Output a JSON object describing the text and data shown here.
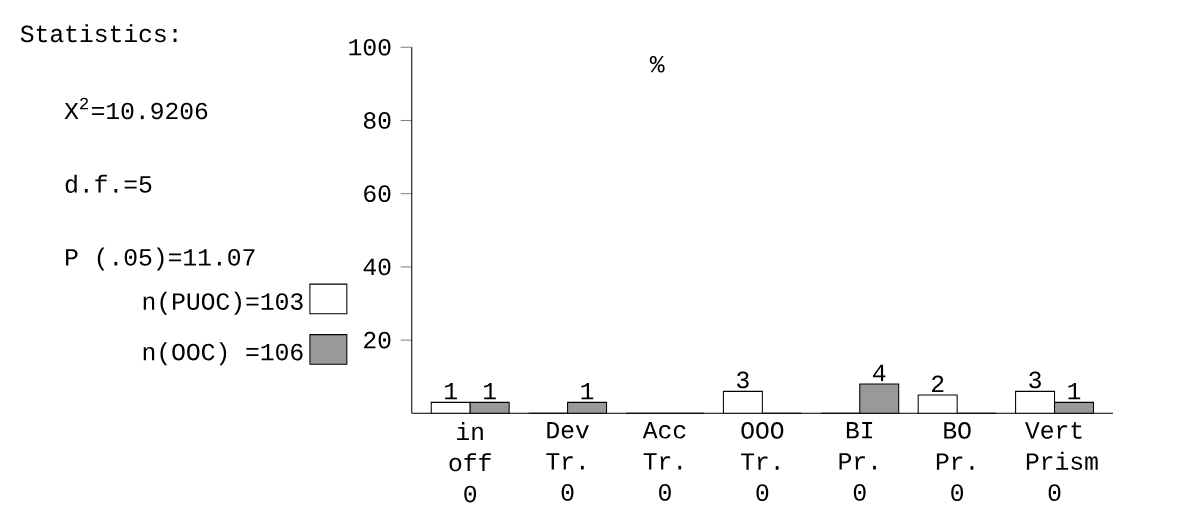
{
  "chart_data": {
    "type": "bar",
    "ylabel": "%",
    "categories": [
      "in off 0",
      "Dev Tr. 0",
      "Acc Tr. 0",
      "OOO Tr. 0",
      "BI Pr. 0",
      "BO Pr. 0",
      "Vert Prism 0"
    ],
    "series": [
      {
        "name": "n(PUOC)=103",
        "color": "#ffffff",
        "values": [
          3,
          0,
          0,
          6,
          0,
          5,
          6
        ]
      },
      {
        "name": "n(OOC) =106",
        "color": "#999999",
        "values": [
          3,
          3,
          0,
          0,
          8,
          0,
          3
        ]
      }
    ],
    "ylim": [
      0,
      100
    ],
    "yticks": [
      20,
      40,
      60,
      80,
      100
    ],
    "legend": "left",
    "annotations": [
      "Statistics:",
      "X$^{2}$=10.9206",
      "d.f.=5",
      "P (.05)=11.07",
      {
        "text": "1",
        "x": "in off 0",
        "y": 3
      },
      {
        "text": "1",
        "x": "in off 0",
        "y": 3
      },
      {
        "text": "1",
        "x": "Dev Tr. 0",
        "y": 3
      },
      {
        "text": "3",
        "x": "OOO Tr. 0",
        "y": 6
      },
      {
        "text": "4",
        "x": "BI Pr. 0",
        "y": 8
      },
      {
        "text": "2",
        "x": "BO Pr. 0",
        "y": 5
      },
      {
        "text": "3",
        "x": "Vert Prism 0",
        "y": 6
      },
      {
        "text": "1",
        "x": "Vert Prism 0",
        "y": 3
      }
    ]
  }
}
